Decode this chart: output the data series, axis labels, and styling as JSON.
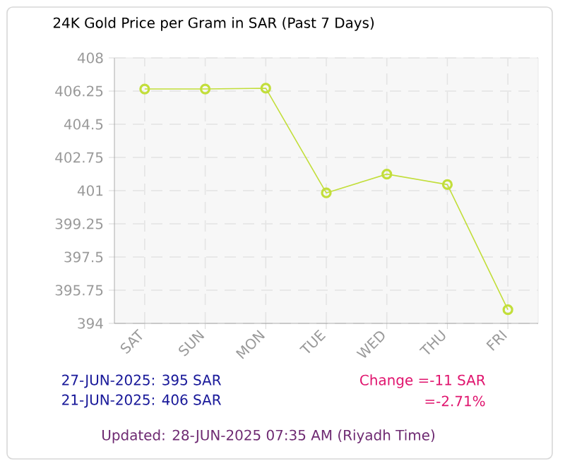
{
  "chart_data": {
    "type": "line",
    "title": "24K Gold Price per Gram in SAR (Past 7 Days)",
    "categories": [
      "SAT",
      "SUN",
      "MON",
      "TUE",
      "WED",
      "THU",
      "FRI"
    ],
    "series": [
      {
        "color": "#c2de3a",
        "values": [
          406.36,
          406.36,
          406.4,
          400.88,
          401.87,
          401.32,
          394.72
        ]
      }
    ],
    "ylim": [
      394,
      408
    ],
    "yticks": [
      394,
      395.75,
      397.5,
      399.25,
      401,
      402.75,
      404.5,
      406.25,
      408
    ],
    "grid": true,
    "marker": "circle",
    "line_style": "solid",
    "annotations": [
      "27-JUN-2025: 395 SAR",
      "21-JUN-2025: 406 SAR",
      "Change =-11 SAR",
      "=-2.71%",
      "Updated: 28-JUN-2025 07:35 AM (Riyadh Time)"
    ]
  }
}
